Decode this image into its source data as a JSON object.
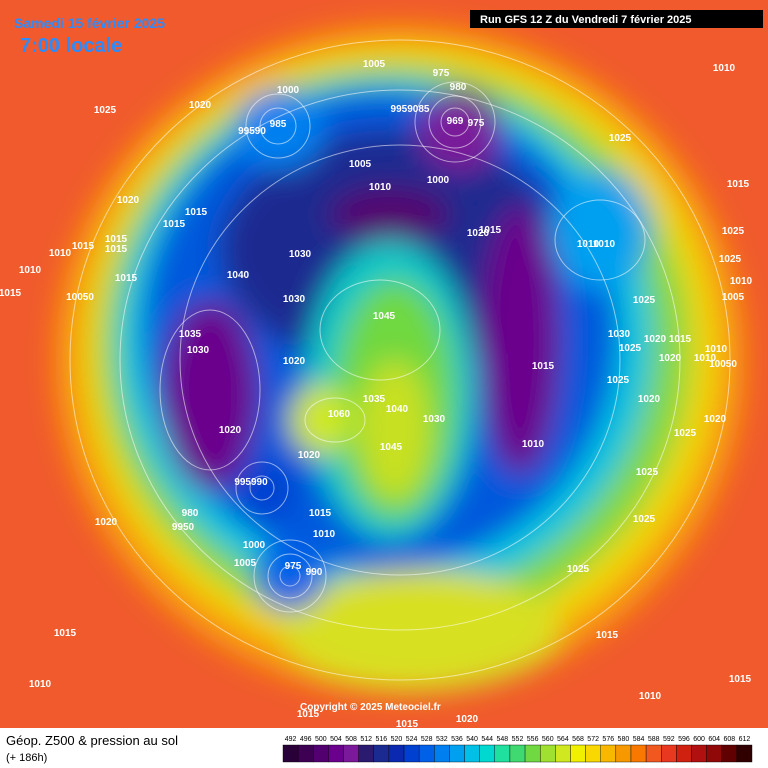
{
  "header": {
    "date": "Samedi 15 février 2025",
    "time": "7:00 locale",
    "run": "Run GFS 12 Z du Vendredi 7 février 2025"
  },
  "footer": {
    "title": "Géop. Z500 & pression au sol",
    "subtitle": "(+ 186h)",
    "copyright": "Copyright © 2025 Meteociel.fr"
  },
  "colorbar": {
    "ticks": [
      492,
      496,
      500,
      504,
      508,
      512,
      516,
      520,
      524,
      528,
      532,
      536,
      540,
      544,
      548,
      552,
      556,
      560,
      564,
      568,
      572,
      576,
      580,
      584,
      588,
      592,
      596,
      600,
      604,
      608,
      612
    ],
    "colors": [
      "#2a0038",
      "#3d0052",
      "#520070",
      "#6a008c",
      "#7a1a9a",
      "#2a1a70",
      "#1a2a90",
      "#0a28b0",
      "#0040d0",
      "#0060e8",
      "#0080f0",
      "#00a0f0",
      "#00c0e8",
      "#00d8d0",
      "#20e0a0",
      "#40d870",
      "#70d840",
      "#a0e030",
      "#d0e820",
      "#f0f000",
      "#f8d800",
      "#f8b800",
      "#f89800",
      "#f87800",
      "#f05820",
      "#e83820",
      "#d02010",
      "#b01010",
      "#900808",
      "#600000",
      "#300000"
    ]
  },
  "isobar_labels": [
    "1025",
    "1020",
    "1000",
    "985",
    "99590",
    "1005",
    "975",
    "980",
    "9959085",
    "969",
    "975",
    "1005",
    "1010",
    "1000",
    "1020",
    "1015",
    "1010",
    "1025",
    "1015",
    "1025",
    "1010",
    "1010",
    "1025",
    "1010",
    "1005",
    "1025",
    "1030",
    "1025",
    "1020",
    "1015",
    "1020",
    "1010",
    "1010",
    "10050",
    "1015",
    "1025",
    "1020",
    "1020",
    "1025",
    "1010",
    "1025",
    "1025",
    "1025",
    "1015",
    "1010",
    "1015",
    "1020",
    "1015",
    "1015",
    "1015",
    "1015",
    "1015",
    "1010",
    "1010",
    "1015",
    "10050",
    "1015",
    "1040",
    "1030",
    "1030",
    "1045",
    "1035",
    "1030",
    "1020",
    "1035",
    "1040",
    "1030",
    "1060",
    "1020",
    "1045",
    "1020",
    "995990",
    "980",
    "9950",
    "1015",
    "1010",
    "1000",
    "1005",
    "975",
    "990",
    "1020",
    "1015",
    "1010",
    "1015",
    "1015",
    "1020"
  ]
}
